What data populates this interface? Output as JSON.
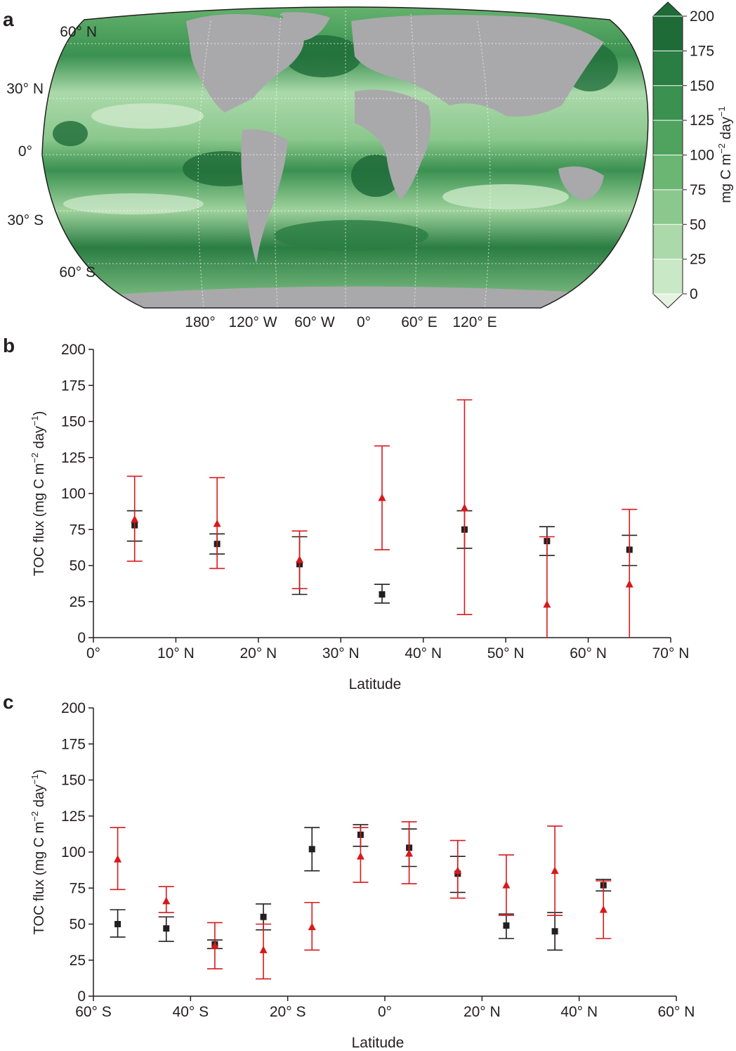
{
  "panels": {
    "a": "a",
    "b": "b",
    "c": "c"
  },
  "map": {
    "lat_labels": [
      "60° N",
      "30° N",
      "0°",
      "30° S",
      "60° S"
    ],
    "lon_labels": [
      "180°",
      "120° W",
      "60° W",
      "0°",
      "60° E",
      "120° E"
    ],
    "colorbar": {
      "ticks": [
        "200",
        "175",
        "150",
        "125",
        "100",
        "75",
        "50",
        "25",
        "0"
      ],
      "label_main": "mg C m",
      "label_exp1": "−2",
      "label_mid": " day",
      "label_exp2": "−1",
      "colors": [
        "#1e6b38",
        "#2a7d43",
        "#3a9150",
        "#4fa35e",
        "#6bb672",
        "#8bc88d",
        "#abd9aa",
        "#c9e8c5",
        "#e4f4e1"
      ]
    },
    "land_color": "#a9a9ab",
    "ocean_colors": [
      "#cfe9cc",
      "#9fd29d",
      "#6bb672",
      "#3a9150",
      "#1e6b38"
    ]
  },
  "chart_data": [
    {
      "panel": "b",
      "type": "scatter",
      "xlabel": "Latitude",
      "ylabel_main": "TOC flux (mg C m",
      "ylabel_exp1": "−2",
      "ylabel_mid": " day",
      "ylabel_exp2": "−1",
      "ylabel_end": ")",
      "xlim": [
        0,
        70
      ],
      "ylim": [
        0,
        200
      ],
      "xticks": [
        0,
        10,
        20,
        30,
        40,
        50,
        60,
        70
      ],
      "xtick_labels": [
        "0°",
        "10° N",
        "20° N",
        "30° N",
        "40° N",
        "50° N",
        "60° N",
        "70° N"
      ],
      "yticks": [
        0,
        25,
        50,
        75,
        100,
        125,
        150,
        175,
        200
      ],
      "ytick_labels": [
        "0",
        "25",
        "50",
        "75",
        "100",
        "125",
        "150",
        "175",
        "200"
      ],
      "series": [
        {
          "color": "#231f20",
          "marker": "square",
          "points": [
            {
              "x": 5,
              "y": 78,
              "lo": 67,
              "hi": 88
            },
            {
              "x": 15,
              "y": 65,
              "lo": 58,
              "hi": 72
            },
            {
              "x": 25,
              "y": 51,
              "lo": 30,
              "hi": 70
            },
            {
              "x": 35,
              "y": 30,
              "lo": 24,
              "hi": 37
            },
            {
              "x": 45,
              "y": 75,
              "lo": 62,
              "hi": 88
            },
            {
              "x": 55,
              "y": 67,
              "lo": 57,
              "hi": 77
            },
            {
              "x": 65,
              "y": 61,
              "lo": 50,
              "hi": 71
            }
          ]
        },
        {
          "color": "#d7191c",
          "marker": "triangle",
          "points": [
            {
              "x": 5,
              "y": 82,
              "lo": 53,
              "hi": 112
            },
            {
              "x": 15,
              "y": 79,
              "lo": 48,
              "hi": 111
            },
            {
              "x": 25,
              "y": 54,
              "lo": 34,
              "hi": 74
            },
            {
              "x": 35,
              "y": 97,
              "lo": 61,
              "hi": 133
            },
            {
              "x": 45,
              "y": 90,
              "lo": 16,
              "hi": 165
            },
            {
              "x": 55,
              "y": 23,
              "lo": 0,
              "hi": 70
            },
            {
              "x": 65,
              "y": 37,
              "lo": 0,
              "hi": 89
            }
          ]
        }
      ]
    },
    {
      "panel": "c",
      "type": "scatter",
      "xlabel": "Latitude",
      "ylabel_main": "TOC flux (mg C m",
      "ylabel_exp1": "−2",
      "ylabel_mid": " day",
      "ylabel_exp2": "−1",
      "ylabel_end": ")",
      "xlim": [
        -60,
        60
      ],
      "ylim": [
        0,
        200
      ],
      "xticks": [
        -60,
        -40,
        -20,
        0,
        20,
        40,
        60
      ],
      "xtick_labels": [
        "60° S",
        "40° S",
        "20° S",
        "0°",
        "20° N",
        "40° N",
        "60° N"
      ],
      "yticks": [
        0,
        25,
        50,
        75,
        100,
        125,
        150,
        175,
        200
      ],
      "ytick_labels": [
        "0",
        "25",
        "50",
        "75",
        "100",
        "125",
        "150",
        "175",
        "200"
      ],
      "series": [
        {
          "color": "#231f20",
          "marker": "square",
          "points": [
            {
              "x": -55,
              "y": 50,
              "lo": 41,
              "hi": 60
            },
            {
              "x": -45,
              "y": 47,
              "lo": 38,
              "hi": 55
            },
            {
              "x": -35,
              "y": 36,
              "lo": 33,
              "hi": 39
            },
            {
              "x": -25,
              "y": 55,
              "lo": 46,
              "hi": 64
            },
            {
              "x": -15,
              "y": 102,
              "lo": 87,
              "hi": 117
            },
            {
              "x": -5,
              "y": 112,
              "lo": 104,
              "hi": 119
            },
            {
              "x": 5,
              "y": 103,
              "lo": 90,
              "hi": 116
            },
            {
              "x": 15,
              "y": 85,
              "lo": 72,
              "hi": 97
            },
            {
              "x": 25,
              "y": 49,
              "lo": 40,
              "hi": 57
            },
            {
              "x": 35,
              "y": 45,
              "lo": 32,
              "hi": 58
            },
            {
              "x": 45,
              "y": 77,
              "lo": 73,
              "hi": 81
            }
          ]
        },
        {
          "color": "#d7191c",
          "marker": "triangle",
          "points": [
            {
              "x": -55,
              "y": 95,
              "lo": 74,
              "hi": 117
            },
            {
              "x": -45,
              "y": 66,
              "lo": 58,
              "hi": 76
            },
            {
              "x": -35,
              "y": 35,
              "lo": 19,
              "hi": 51
            },
            {
              "x": -25,
              "y": 32,
              "lo": 12,
              "hi": 50
            },
            {
              "x": -15,
              "y": 48,
              "lo": 32,
              "hi": 65
            },
            {
              "x": -5,
              "y": 97,
              "lo": 79,
              "hi": 117
            },
            {
              "x": 5,
              "y": 99,
              "lo": 78,
              "hi": 121
            },
            {
              "x": 15,
              "y": 87,
              "lo": 68,
              "hi": 108
            },
            {
              "x": 25,
              "y": 77,
              "lo": 56,
              "hi": 98
            },
            {
              "x": 35,
              "y": 87,
              "lo": 56,
              "hi": 118
            },
            {
              "x": 45,
              "y": 60,
              "lo": 40,
              "hi": 80
            }
          ]
        }
      ]
    }
  ]
}
